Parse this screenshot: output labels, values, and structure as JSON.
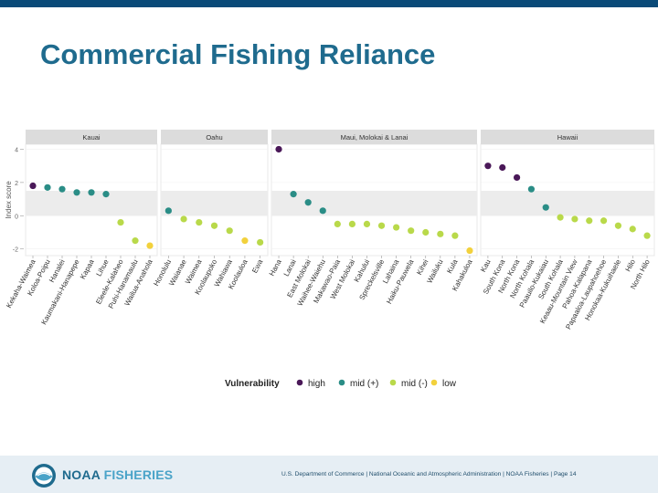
{
  "slide": {
    "title": "Commercial Fishing Reliance",
    "footer_text": "U.S. Department of Commerce | National Oceanic and Atmospheric Administration | NOAA Fisheries | Page 14",
    "brand_noaa": "NOAA",
    "brand_fisheries": "FISHERIES",
    "accent_color": "#1f6b8e"
  },
  "chart_data": {
    "type": "scatter",
    "ylabel": "Index score",
    "yticks": [
      -2,
      0,
      2,
      4
    ],
    "ylim": [
      -2.4,
      4.3
    ],
    "shaded_band": [
      0,
      1.5
    ],
    "legend": {
      "title": "Vulnerability",
      "position": "bottom",
      "items": [
        {
          "label": "high",
          "color": "#4a1858"
        },
        {
          "label": "mid (+)",
          "color": "#2a8d86"
        },
        {
          "label": "mid (-)",
          "color": "#b9d94a"
        },
        {
          "label": "low",
          "color": "#f2d13c"
        }
      ]
    },
    "panels": [
      {
        "name": "Kauai",
        "points": [
          {
            "place": "Kekaha-Waimea",
            "value": 1.8,
            "level": "high"
          },
          {
            "place": "Koloa-Poipu",
            "value": 1.7,
            "level": "mid (+)"
          },
          {
            "place": "Hanalei",
            "value": 1.6,
            "level": "mid (+)"
          },
          {
            "place": "Kaumakani-Hanapepe",
            "value": 1.4,
            "level": "mid (+)"
          },
          {
            "place": "Kapaa",
            "value": 1.4,
            "level": "mid (+)"
          },
          {
            "place": "Lihue",
            "value": 1.3,
            "level": "mid (+)"
          },
          {
            "place": "Eleele-Kalaheo",
            "value": -0.4,
            "level": "mid (-)"
          },
          {
            "place": "Puhi-Hanamaulu",
            "value": -1.5,
            "level": "mid (-)"
          },
          {
            "place": "Wailua-Anahola",
            "value": -1.8,
            "level": "low"
          }
        ]
      },
      {
        "name": "Oahu",
        "points": [
          {
            "place": "Honolulu",
            "value": 0.3,
            "level": "mid (+)"
          },
          {
            "place": "Waianae",
            "value": -0.2,
            "level": "mid (-)"
          },
          {
            "place": "Waimea",
            "value": -0.4,
            "level": "mid (-)"
          },
          {
            "place": "Koolaupoko",
            "value": -0.6,
            "level": "mid (-)"
          },
          {
            "place": "Wahiawa",
            "value": -0.9,
            "level": "mid (-)"
          },
          {
            "place": "Koolauloa",
            "value": -1.5,
            "level": "low"
          },
          {
            "place": "Ewa",
            "value": -1.6,
            "level": "mid (-)"
          }
        ]
      },
      {
        "name": "Maui, Molokai & Lanai",
        "points": [
          {
            "place": "Hana",
            "value": 4.0,
            "level": "high"
          },
          {
            "place": "Lanai",
            "value": 1.3,
            "level": "mid (+)"
          },
          {
            "place": "East Molokai",
            "value": 0.8,
            "level": "mid (+)"
          },
          {
            "place": "Waihee-Waiehu",
            "value": 0.3,
            "level": "mid (+)"
          },
          {
            "place": "Makawao-Paia",
            "value": -0.5,
            "level": "mid (-)"
          },
          {
            "place": "West Molokai",
            "value": -0.5,
            "level": "mid (-)"
          },
          {
            "place": "Kahului",
            "value": -0.5,
            "level": "mid (-)"
          },
          {
            "place": "Spreckelsville",
            "value": -0.6,
            "level": "mid (-)"
          },
          {
            "place": "Lahaina",
            "value": -0.7,
            "level": "mid (-)"
          },
          {
            "place": "Haiku-Pauwela",
            "value": -0.9,
            "level": "mid (-)"
          },
          {
            "place": "Kihei",
            "value": -1.0,
            "level": "mid (-)"
          },
          {
            "place": "Wailuku",
            "value": -1.1,
            "level": "mid (-)"
          },
          {
            "place": "Kula",
            "value": -1.2,
            "level": "mid (-)"
          },
          {
            "place": "Kahakuloa",
            "value": -2.1,
            "level": "low"
          }
        ]
      },
      {
        "name": "Hawaii",
        "points": [
          {
            "place": "Kau",
            "value": 3.0,
            "level": "high"
          },
          {
            "place": "South Kona",
            "value": 2.9,
            "level": "high"
          },
          {
            "place": "North Kona",
            "value": 2.3,
            "level": "high"
          },
          {
            "place": "North Kohala",
            "value": 1.6,
            "level": "mid (+)"
          },
          {
            "place": "Paauilo-Kukaiau",
            "value": 0.5,
            "level": "mid (+)"
          },
          {
            "place": "South Kohala",
            "value": -0.1,
            "level": "mid (-)"
          },
          {
            "place": "Keaau-Mountain View",
            "value": -0.2,
            "level": "mid (-)"
          },
          {
            "place": "Pahoa-Kalapana",
            "value": -0.3,
            "level": "mid (-)"
          },
          {
            "place": "Papaaloa-Laupahoehoe",
            "value": -0.3,
            "level": "mid (-)"
          },
          {
            "place": "Honokaa-Kukuihaele",
            "value": -0.6,
            "level": "mid (-)"
          },
          {
            "place": "Hilo",
            "value": -0.8,
            "level": "mid (-)"
          },
          {
            "place": "North Hilo",
            "value": -1.2,
            "level": "mid (-)"
          }
        ]
      }
    ]
  }
}
